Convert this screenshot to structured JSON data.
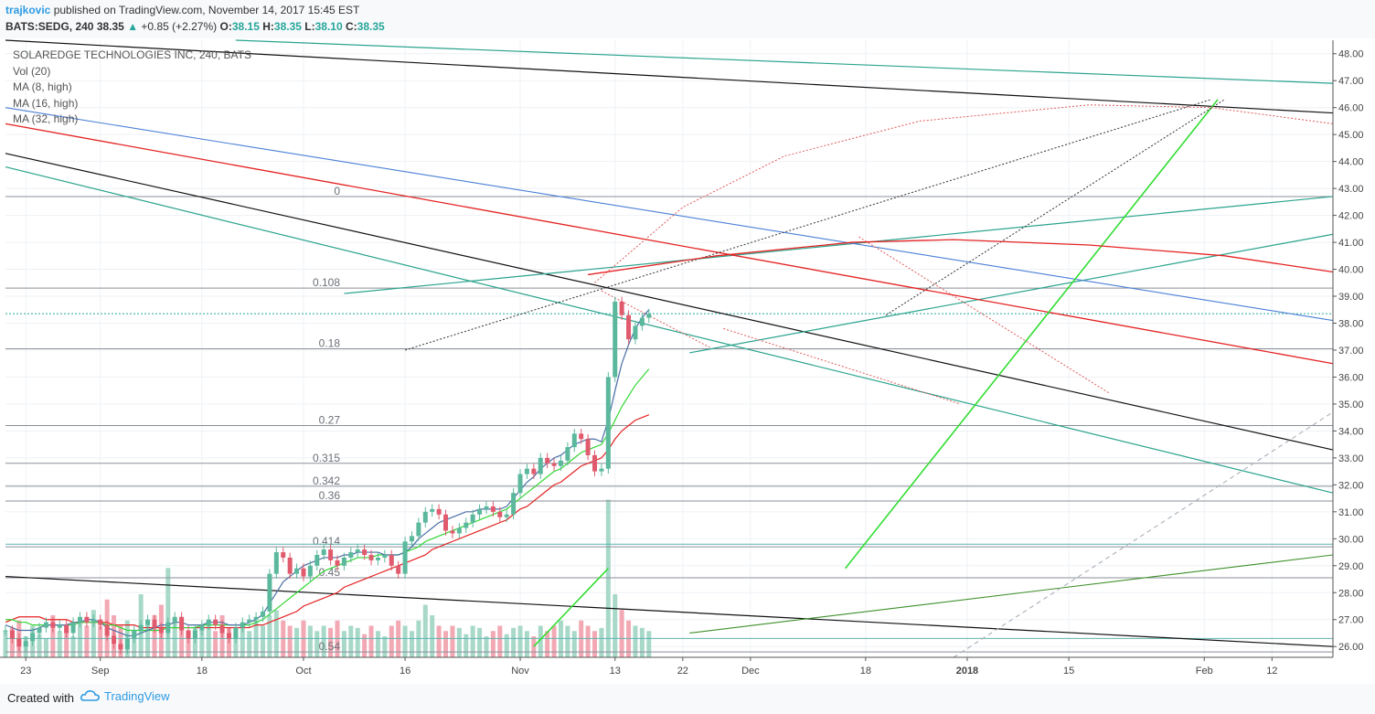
{
  "header": {
    "author": "trajkovic",
    "published": "published on TradingView.com, November 14, 2017 15:45 EST",
    "symbol": "BATS:SEDG, 240",
    "last": "38.35",
    "change": "+0.85 (+2.27%)",
    "open_label": "O:",
    "open": "38.15",
    "high_label": "H:",
    "high": "38.35",
    "low_label": "L:",
    "low": "38.10",
    "close_label": "C:",
    "close": "38.35"
  },
  "legend": [
    "SOLAREDGE TECHNOLOGIES INC, 240, BATS",
    "Vol (20)",
    "MA (8, high)",
    "MA (16, high)",
    "MA (32, high)"
  ],
  "footer": {
    "made_with": "Created with",
    "brand": "TradingView"
  },
  "colors": {
    "up": "#5bb89d",
    "down": "#e05b6d",
    "vol_up": "#a8d9c8",
    "vol_down": "#f2a9b4",
    "ma8": "#4a6fa5",
    "ma16": "#33d633",
    "ma32": "#e52222"
  },
  "chart_data": {
    "type": "candlestick",
    "y_axis": {
      "range": [
        25.6,
        48.5
      ],
      "ticks": [
        "48.00",
        "47.00",
        "46.00",
        "45.00",
        "44.00",
        "43.00",
        "42.00",
        "41.00",
        "40.00",
        "39.00",
        "38.00",
        "37.00",
        "36.00",
        "35.00",
        "34.00",
        "33.00",
        "32.00",
        "31.00",
        "30.00",
        "29.00",
        "28.00",
        "27.00",
        "26.00"
      ]
    },
    "x_axis": {
      "bar_range": [
        0,
        196
      ],
      "ticks": [
        {
          "bar": 3,
          "label": "23",
          "bold": false
        },
        {
          "bar": 14,
          "label": "Sep",
          "bold": false
        },
        {
          "bar": 29,
          "label": "18",
          "bold": false
        },
        {
          "bar": 44,
          "label": "Oct",
          "bold": false
        },
        {
          "bar": 59,
          "label": "16",
          "bold": false
        },
        {
          "bar": 76,
          "label": "Nov",
          "bold": false
        },
        {
          "bar": 90,
          "label": "13",
          "bold": false
        },
        {
          "bar": 100,
          "label": "22",
          "bold": false
        },
        {
          "bar": 110,
          "label": "Dec",
          "bold": false
        },
        {
          "bar": 127,
          "label": "18",
          "bold": false
        },
        {
          "bar": 142,
          "label": "2018",
          "bold": true
        },
        {
          "bar": 157,
          "label": "15",
          "bold": false
        },
        {
          "bar": 177,
          "label": "Feb",
          "bold": false
        },
        {
          "bar": 187,
          "label": "12",
          "bold": false
        }
      ]
    },
    "fib_levels": [
      {
        "ratio": "0",
        "price": 42.7
      },
      {
        "ratio": "0.108",
        "price": 39.3
      },
      {
        "ratio": "0.18",
        "price": 37.05
      },
      {
        "ratio": "0.27",
        "price": 34.2
      },
      {
        "ratio": "0.315",
        "price": 32.8
      },
      {
        "ratio": "0.342",
        "price": 31.95
      },
      {
        "ratio": "0.36",
        "price": 31.4
      },
      {
        "ratio": "0.414",
        "price": 29.7
      },
      {
        "ratio": "0.45",
        "price": 28.55
      },
      {
        "ratio": "0.54",
        "price": 25.8
      }
    ],
    "extra_hlines": [
      29.8,
      26.3
    ],
    "last_price": 38.35,
    "price_series": [
      26.6,
      26.3,
      26.0,
      26.2,
      26.5,
      26.7,
      26.9,
      26.7,
      26.8,
      26.5,
      26.9,
      27.1,
      26.9,
      27.0,
      26.8,
      26.4,
      26.1,
      25.9,
      26.3,
      26.6,
      26.8,
      27.0,
      26.7,
      26.5,
      26.9,
      27.1,
      26.6,
      26.3,
      26.6,
      26.8,
      27.0,
      26.8,
      26.5,
      26.3,
      26.7,
      26.9,
      27.0,
      27.1,
      27.3,
      28.7,
      29.5,
      29.3,
      28.7,
      28.9,
      28.6,
      29.0,
      29.4,
      29.6,
      29.2,
      29.0,
      29.3,
      29.5,
      29.6,
      29.4,
      29.2,
      29.3,
      29.4,
      29.0,
      28.7,
      29.9,
      30.1,
      30.6,
      31.0,
      31.1,
      30.9,
      30.3,
      30.2,
      30.4,
      30.6,
      30.9,
      31.1,
      31.2,
      31.0,
      30.8,
      30.9,
      31.7,
      32.4,
      32.6,
      32.4,
      33.0,
      32.8,
      32.7,
      32.9,
      33.4,
      33.9,
      33.7,
      33.1,
      32.5,
      32.6,
      36.0,
      38.8,
      38.3,
      37.4,
      37.9,
      38.2,
      38.35
    ],
    "ma8": [
      26.8,
      26.7,
      26.6,
      26.6,
      26.6,
      26.7,
      26.8,
      26.8,
      26.8,
      26.8,
      26.9,
      26.9,
      27.0,
      27.0,
      26.9,
      26.7,
      26.6,
      26.5,
      26.4,
      26.4,
      26.5,
      26.6,
      26.7,
      26.8,
      26.8,
      26.9,
      26.9,
      26.8,
      26.8,
      26.8,
      26.9,
      26.9,
      26.9,
      26.8,
      26.8,
      26.8,
      26.9,
      27.0,
      27.2,
      27.6,
      28.0,
      28.4,
      28.6,
      28.8,
      29.0,
      29.1,
      29.2,
      29.3,
      29.3,
      29.3,
      29.4,
      29.4,
      29.5,
      29.5,
      29.5,
      29.5,
      29.4,
      29.4,
      29.4,
      29.5,
      29.7,
      30.0,
      30.2,
      30.4,
      30.6,
      30.7,
      30.8,
      30.9,
      31.0,
      31.0,
      31.1,
      31.1,
      31.1,
      31.1,
      31.2,
      31.5,
      31.8,
      32.1,
      32.3,
      32.6,
      32.8,
      33.0,
      33.1,
      33.3,
      33.5,
      33.6,
      33.7,
      33.7,
      33.6,
      34.4,
      35.5,
      36.5,
      37.2,
      37.8,
      38.2,
      38.5
    ],
    "ma16": [
      27.0,
      27.0,
      26.9,
      26.9,
      26.8,
      26.8,
      26.8,
      26.8,
      26.8,
      26.8,
      26.8,
      26.9,
      26.9,
      26.9,
      26.9,
      26.8,
      26.8,
      26.7,
      26.6,
      26.6,
      26.6,
      26.6,
      26.6,
      26.6,
      26.7,
      26.7,
      26.7,
      26.7,
      26.7,
      26.8,
      26.8,
      26.8,
      26.8,
      26.8,
      26.8,
      26.8,
      26.8,
      26.9,
      27.0,
      27.2,
      27.4,
      27.6,
      27.8,
      28.0,
      28.2,
      28.4,
      28.6,
      28.8,
      28.9,
      29.0,
      29.1,
      29.2,
      29.3,
      29.3,
      29.3,
      29.4,
      29.4,
      29.4,
      29.4,
      29.5,
      29.6,
      29.7,
      29.9,
      30.0,
      30.1,
      30.2,
      30.3,
      30.4,
      30.5,
      30.6,
      30.7,
      30.8,
      30.9,
      31.0,
      31.1,
      31.3,
      31.5,
      31.7,
      31.9,
      32.1,
      32.3,
      32.5,
      32.6,
      32.8,
      33.0,
      33.2,
      33.3,
      33.4,
      33.5,
      33.9,
      34.4,
      34.9,
      35.3,
      35.7,
      36.0,
      36.3
    ],
    "ma32": [
      26.9,
      27.0,
      27.1,
      27.1,
      27.1,
      27.1,
      27.0,
      27.0,
      27.0,
      27.0,
      26.9,
      26.9,
      26.9,
      26.9,
      26.9,
      26.9,
      26.8,
      26.8,
      26.8,
      26.8,
      26.7,
      26.7,
      26.7,
      26.7,
      26.7,
      26.7,
      26.7,
      26.7,
      26.7,
      26.7,
      26.7,
      26.7,
      26.7,
      26.7,
      26.7,
      26.7,
      26.7,
      26.8,
      26.8,
      26.9,
      27.0,
      27.1,
      27.2,
      27.3,
      27.5,
      27.6,
      27.7,
      27.8,
      27.9,
      28.0,
      28.2,
      28.3,
      28.4,
      28.5,
      28.6,
      28.7,
      28.8,
      28.9,
      29.0,
      29.1,
      29.2,
      29.3,
      29.4,
      29.6,
      29.7,
      29.8,
      29.9,
      30.0,
      30.1,
      30.2,
      30.3,
      30.4,
      30.5,
      30.6,
      30.7,
      30.9,
      31.1,
      31.2,
      31.4,
      31.6,
      31.8,
      32.0,
      32.1,
      32.3,
      32.5,
      32.7,
      32.8,
      32.9,
      33.0,
      33.3,
      33.7,
      34.0,
      34.2,
      34.4,
      34.5,
      34.6
    ],
    "volume": [
      0.25,
      0.28,
      0.35,
      0.2,
      0.3,
      0.22,
      0.18,
      0.4,
      0.25,
      0.3,
      0.2,
      0.35,
      0.3,
      0.45,
      0.3,
      0.55,
      0.4,
      0.3,
      0.35,
      0.25,
      0.6,
      0.35,
      0.4,
      0.5,
      0.85,
      0.35,
      0.3,
      0.25,
      0.28,
      0.3,
      0.35,
      0.25,
      0.4,
      0.28,
      0.22,
      0.3,
      0.25,
      0.35,
      0.3,
      0.4,
      0.45,
      0.35,
      0.3,
      0.28,
      0.35,
      0.3,
      0.25,
      0.3,
      0.28,
      0.35,
      0.25,
      0.3,
      0.28,
      0.22,
      0.3,
      0.25,
      0.2,
      0.3,
      0.35,
      0.3,
      0.25,
      0.35,
      0.5,
      0.4,
      0.3,
      0.25,
      0.3,
      0.28,
      0.22,
      0.3,
      0.28,
      0.2,
      0.25,
      0.3,
      0.22,
      0.28,
      0.3,
      0.25,
      0.2,
      0.3,
      0.25,
      0.3,
      0.35,
      0.3,
      0.25,
      0.35,
      0.3,
      0.25,
      0.28,
      1.5,
      0.6,
      0.45,
      0.35,
      0.3,
      0.28,
      0.25
    ]
  }
}
